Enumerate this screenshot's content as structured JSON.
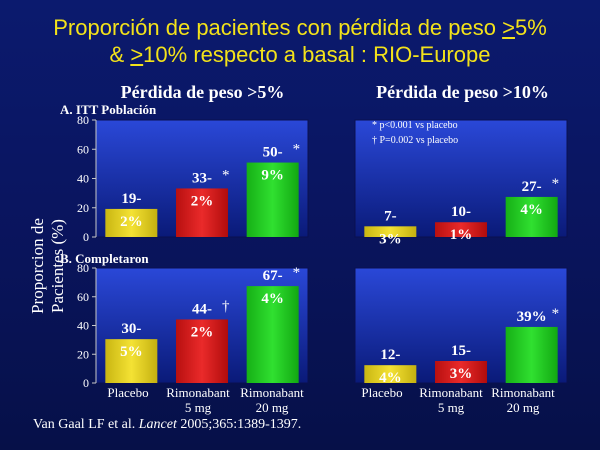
{
  "header": {
    "line1_prefix": "Proporción de pacientes con pérdida de peso ",
    "line1_u": ">",
    "line1_suffix": "5%",
    "line2_prefix": "& ",
    "line2_u": ">",
    "line2_suffix": "10% respecto a basal : RIO-Europe"
  },
  "y_axis_label": "Proporcion de Pacientes (%)",
  "footnotes": [
    "* p<0.001 vs placebo",
    "† P=0.002 vs placebo"
  ],
  "citation": {
    "prefix": "Van Gaal LF et al. ",
    "journal": "Lancet",
    "suffix": " 2005;365:1389-1397."
  },
  "chart_data": [
    {
      "type": "bar",
      "panel": "A-left",
      "title": "Pérdida de peso >5%",
      "subtitle": "A. ITT Población",
      "categories": [
        "Placebo",
        "Rimonabant 5 mg",
        "Rimonabant 20 mg"
      ],
      "values": [
        19.2,
        33.2,
        50.9
      ],
      "labels": [
        "19.2%",
        "33.2%",
        "50.9%"
      ],
      "markers": [
        "",
        "*",
        "*"
      ],
      "ylim": [
        0,
        80
      ],
      "yticks": [
        "0",
        "20",
        "40",
        "60",
        "80"
      ]
    },
    {
      "type": "bar",
      "panel": "A-right",
      "title": "Pérdida de peso >10%",
      "categories": [
        "Placebo",
        "Rimonabant 5 mg",
        "Rimonabant 20 mg"
      ],
      "values": [
        7.3,
        10.1,
        27.4
      ],
      "labels": [
        "7.3%",
        "10.1%",
        "27.4%"
      ],
      "markers": [
        "",
        "",
        "*"
      ],
      "ylim": [
        0,
        80
      ]
    },
    {
      "type": "bar",
      "panel": "B-left",
      "subtitle": "B. Completaron",
      "categories": [
        "Placebo",
        "Rimonabant 5 mg",
        "Rimonabant 20 mg"
      ],
      "values": [
        30.5,
        44.2,
        67.4
      ],
      "labels": [
        "30.5%",
        "44.2%",
        "67.4%"
      ],
      "markers": [
        "",
        "†",
        "*"
      ],
      "ylim": [
        0,
        80
      ],
      "yticks": [
        "0",
        "20",
        "40",
        "60",
        "80"
      ]
    },
    {
      "type": "bar",
      "panel": "B-right",
      "categories": [
        "Placebo",
        "Rimonabant 5 mg",
        "Rimonabant 20 mg"
      ],
      "values": [
        12.4,
        15.3,
        39
      ],
      "labels": [
        "12.4%",
        "15.3%",
        "39%"
      ],
      "markers": [
        "",
        "",
        "*"
      ],
      "ylim": [
        0,
        80
      ]
    }
  ],
  "x_categories": [
    {
      "line1": "Placebo",
      "line2": ""
    },
    {
      "line1": "Rimonabant",
      "line2": "5 mg"
    },
    {
      "line1": "Rimonabant",
      "line2": "20 mg"
    }
  ],
  "colors": {
    "panel_top": "#2a48d8",
    "panel_bottom": "#0a1a78",
    "placebo": "#e6d420",
    "rimo5": "#d81a1a",
    "rimo20": "#1fd01f",
    "title": "#f3e21a"
  }
}
